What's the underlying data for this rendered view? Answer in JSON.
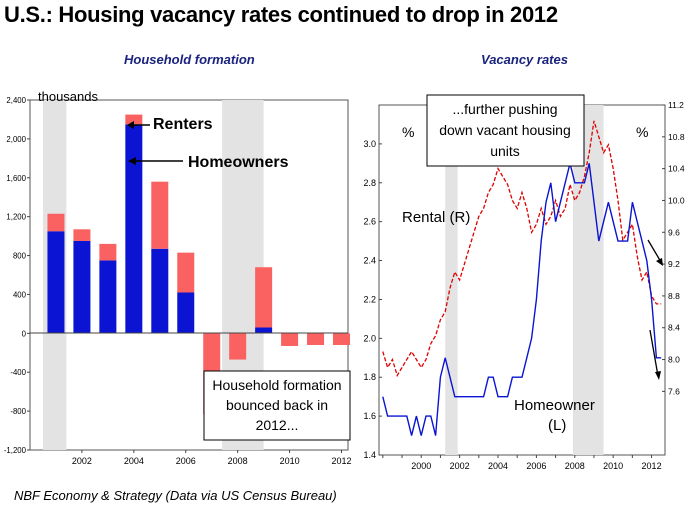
{
  "title": "U.S.: Housing vacancy rates continued to drop in 2012",
  "footer": "NBF Economy & Strategy (Data via US Census Bureau)",
  "colors": {
    "renters": "#fa6262",
    "homeowners": "#0a14d2",
    "shade": "#e3e3e3",
    "rental_line": "#e00000",
    "homeowner_line": "#0a14d2"
  },
  "chart_data": [
    {
      "type": "bar",
      "title": "Household formation",
      "ylabel": "thousands",
      "ylim": [
        -1200,
        2400
      ],
      "yticks": [
        "-1,200",
        "-800",
        "-400",
        "0",
        "400",
        "800",
        "1,200",
        "1,600",
        "2,000",
        "2,400"
      ],
      "xticks": [
        "2002",
        "2004",
        "2006",
        "2008",
        "2010",
        "2012"
      ],
      "categories": [
        "2001",
        "2002",
        "2003",
        "2004",
        "2005",
        "2006",
        "2007",
        "2008",
        "2009",
        "2010",
        "2011",
        "2012"
      ],
      "stacked": true,
      "series": [
        {
          "name": "Homeowners",
          "values": [
            1050,
            950,
            750,
            2150,
            870,
            420,
            0,
            0,
            60,
            0,
            0,
            0
          ]
        },
        {
          "name": "Renters",
          "values": [
            180,
            120,
            170,
            100,
            690,
            410,
            -830,
            -270,
            620,
            -130,
            -120,
            -120
          ]
        }
      ],
      "shaded_periods": [
        [
          2001,
          2001.9
        ],
        [
          2007.9,
          2009.5
        ]
      ],
      "annotations": [
        "Renters",
        "Homeowners",
        "Household formation bounced back in 2012..."
      ]
    },
    {
      "type": "line",
      "title": "Vacancy rates",
      "y_left": {
        "label": "%",
        "ylim": [
          1.4,
          3.2
        ],
        "ticks": [
          "1.4",
          "1.6",
          "1.8",
          "2.0",
          "2.2",
          "2.4",
          "2.6",
          "2.8",
          "3.0"
        ]
      },
      "y_right": {
        "label": "%",
        "ylim": [
          6.8,
          11.2
        ],
        "ticks": [
          "7.6",
          "8.0",
          "8.4",
          "8.8",
          "9.2",
          "9.6",
          "10.0",
          "10.4",
          "10.8",
          "11.2"
        ]
      },
      "xticks": [
        "2000",
        "2002",
        "2004",
        "2006",
        "2008",
        "2010",
        "2012"
      ],
      "shaded_periods": [
        [
          2001.25,
          2001.9
        ],
        [
          2007.9,
          2009.5
        ]
      ],
      "series": [
        {
          "name": "Rental (R)",
          "axis": "right",
          "x": [
            1998.0,
            1998.25,
            1998.5,
            1998.75,
            1999.0,
            1999.25,
            1999.5,
            1999.75,
            2000.0,
            2000.25,
            2000.5,
            2000.75,
            2001.0,
            2001.25,
            2001.5,
            2001.75,
            2002.0,
            2002.25,
            2002.5,
            2002.75,
            2003.0,
            2003.25,
            2003.5,
            2003.75,
            2004.0,
            2004.25,
            2004.5,
            2004.75,
            2005.0,
            2005.25,
            2005.5,
            2005.75,
            2006.0,
            2006.25,
            2006.5,
            2006.75,
            2007.0,
            2007.25,
            2007.5,
            2007.75,
            2008.0,
            2008.25,
            2008.5,
            2008.75,
            2009.0,
            2009.25,
            2009.5,
            2009.75,
            2010.0,
            2010.25,
            2010.5,
            2010.75,
            2011.0,
            2011.25,
            2011.5,
            2011.75,
            2012.0,
            2012.25,
            2012.5
          ],
          "values": [
            8.1,
            7.9,
            8.0,
            7.8,
            7.9,
            8.0,
            8.1,
            8.0,
            7.9,
            8.0,
            8.2,
            8.3,
            8.5,
            8.6,
            8.9,
            9.1,
            9.0,
            9.2,
            9.4,
            9.6,
            9.8,
            9.9,
            10.1,
            10.2,
            10.4,
            10.3,
            10.2,
            10.0,
            9.9,
            10.1,
            9.9,
            9.6,
            9.7,
            9.9,
            9.7,
            9.8,
            10.0,
            9.8,
            9.9,
            10.2,
            10.0,
            10.1,
            10.3,
            10.6,
            11.0,
            10.8,
            10.6,
            10.7,
            10.4,
            10.0,
            9.5,
            9.6,
            9.7,
            9.3,
            9.0,
            9.1,
            8.8,
            8.7,
            8.7
          ]
        },
        {
          "name": "Homeowner (L)",
          "axis": "left",
          "x": [
            1998.0,
            1998.25,
            1998.5,
            1998.75,
            1999.0,
            1999.25,
            1999.5,
            1999.75,
            2000.0,
            2000.25,
            2000.5,
            2000.75,
            2001.0,
            2001.25,
            2001.5,
            2001.75,
            2002.0,
            2002.25,
            2002.5,
            2002.75,
            2003.0,
            2003.25,
            2003.5,
            2003.75,
            2004.0,
            2004.25,
            2004.5,
            2004.75,
            2005.0,
            2005.25,
            2005.5,
            2005.75,
            2006.0,
            2006.25,
            2006.5,
            2006.75,
            2007.0,
            2007.25,
            2007.5,
            2007.75,
            2008.0,
            2008.25,
            2008.5,
            2008.75,
            2009.0,
            2009.25,
            2009.5,
            2009.75,
            2010.0,
            2010.25,
            2010.5,
            2010.75,
            2011.0,
            2011.25,
            2011.5,
            2011.75,
            2012.0,
            2012.25,
            2012.5
          ],
          "values": [
            1.7,
            1.6,
            1.6,
            1.6,
            1.6,
            1.6,
            1.5,
            1.6,
            1.5,
            1.6,
            1.6,
            1.5,
            1.8,
            1.9,
            1.8,
            1.7,
            1.7,
            1.7,
            1.7,
            1.7,
            1.7,
            1.7,
            1.8,
            1.8,
            1.7,
            1.7,
            1.7,
            1.8,
            1.8,
            1.8,
            1.9,
            2.0,
            2.2,
            2.5,
            2.7,
            2.8,
            2.6,
            2.7,
            2.8,
            2.9,
            2.8,
            2.8,
            2.8,
            2.9,
            2.7,
            2.5,
            2.6,
            2.7,
            2.6,
            2.5,
            2.5,
            2.5,
            2.7,
            2.6,
            2.5,
            2.4,
            2.2,
            1.9,
            1.9
          ]
        }
      ],
      "annotations": [
        "...further pushing down vacant housing units",
        "Rental (R)",
        "Homeowner (L)"
      ]
    }
  ]
}
